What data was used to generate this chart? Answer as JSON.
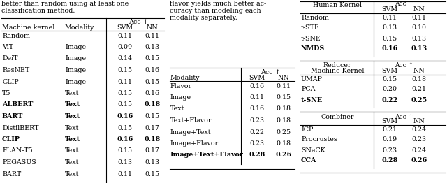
{
  "table1": {
    "rows": [
      [
        "Random",
        "",
        "0.11",
        "0.11",
        false,
        false,
        false,
        false
      ],
      [
        "ViT",
        "Image",
        "0.09",
        "0.13",
        false,
        false,
        false,
        false
      ],
      [
        "DeiT",
        "Image",
        "0.14",
        "0.15",
        false,
        false,
        false,
        false
      ],
      [
        "ResNET",
        "Image",
        "0.15",
        "0.16",
        false,
        false,
        false,
        false
      ],
      [
        "CLIP",
        "Image",
        "0.11",
        "0.15",
        false,
        false,
        false,
        false
      ],
      [
        "T5",
        "Text",
        "0.15",
        "0.16",
        false,
        false,
        false,
        false
      ],
      [
        "ALBERT",
        "Text",
        "0.15",
        "0.18",
        true,
        true,
        false,
        true
      ],
      [
        "BART",
        "Text",
        "0.16",
        "0.15",
        true,
        true,
        true,
        false
      ],
      [
        "DistilBERT",
        "Text",
        "0.15",
        "0.17",
        false,
        false,
        false,
        false
      ],
      [
        "CLIP",
        "Text",
        "0.16",
        "0.18",
        true,
        true,
        true,
        true
      ],
      [
        "FLAN-T5",
        "Text",
        "0.15",
        "0.17",
        false,
        false,
        false,
        false
      ],
      [
        "PEGASUS",
        "Text",
        "0.13",
        "0.13",
        false,
        false,
        false,
        false
      ],
      [
        "BART",
        "Text",
        "0.11",
        "0.15",
        false,
        false,
        false,
        false
      ]
    ]
  },
  "table2": {
    "rows": [
      [
        "Flavor",
        "0.16",
        "0.11",
        false,
        false,
        false
      ],
      [
        "Image",
        "0.11",
        "0.15",
        false,
        false,
        false
      ],
      [
        "Text",
        "0.16",
        "0.18",
        false,
        false,
        false
      ],
      [
        "Text+Flavor",
        "0.23",
        "0.18",
        false,
        false,
        false
      ],
      [
        "Image+Text",
        "0.22",
        "0.25",
        false,
        false,
        false
      ],
      [
        "Image+Flavor",
        "0.23",
        "0.18",
        false,
        false,
        false
      ],
      [
        "Image+Text+Flavor",
        "0.28",
        "0.26",
        true,
        true,
        true
      ]
    ]
  },
  "table3a": {
    "rows": [
      [
        "Random",
        "0.11",
        "0.11",
        false,
        false,
        false
      ],
      [
        "t-STE",
        "0.13",
        "0.10",
        false,
        false,
        false
      ],
      [
        "t-SNE",
        "0.15",
        "0.13",
        false,
        false,
        false
      ],
      [
        "NMDS",
        "0.16",
        "0.13",
        true,
        true,
        true
      ]
    ]
  },
  "table3b": {
    "rows": [
      [
        "UMAP",
        "0.15",
        "0.18",
        false,
        false,
        false
      ],
      [
        "PCA",
        "0.20",
        "0.21",
        false,
        false,
        false
      ],
      [
        "t-SNE",
        "0.22",
        "0.25",
        true,
        true,
        true
      ]
    ]
  },
  "table3c": {
    "rows": [
      [
        "ICP",
        "0.21",
        "0.24",
        false,
        false,
        false
      ],
      [
        "Procrustes",
        "0.19",
        "0.23",
        false,
        false,
        false
      ],
      [
        "SNaCK",
        "0.23",
        "0.24",
        false,
        false,
        false
      ],
      [
        "CCA",
        "0.28",
        "0.26",
        true,
        true,
        true
      ]
    ]
  },
  "prose1a": "better than random using at least one",
  "prose1b": "classification method.",
  "prose2a": "flavor yields much better ac-",
  "prose2b": "curacy than modeling each",
  "prose2c": "modality separately."
}
